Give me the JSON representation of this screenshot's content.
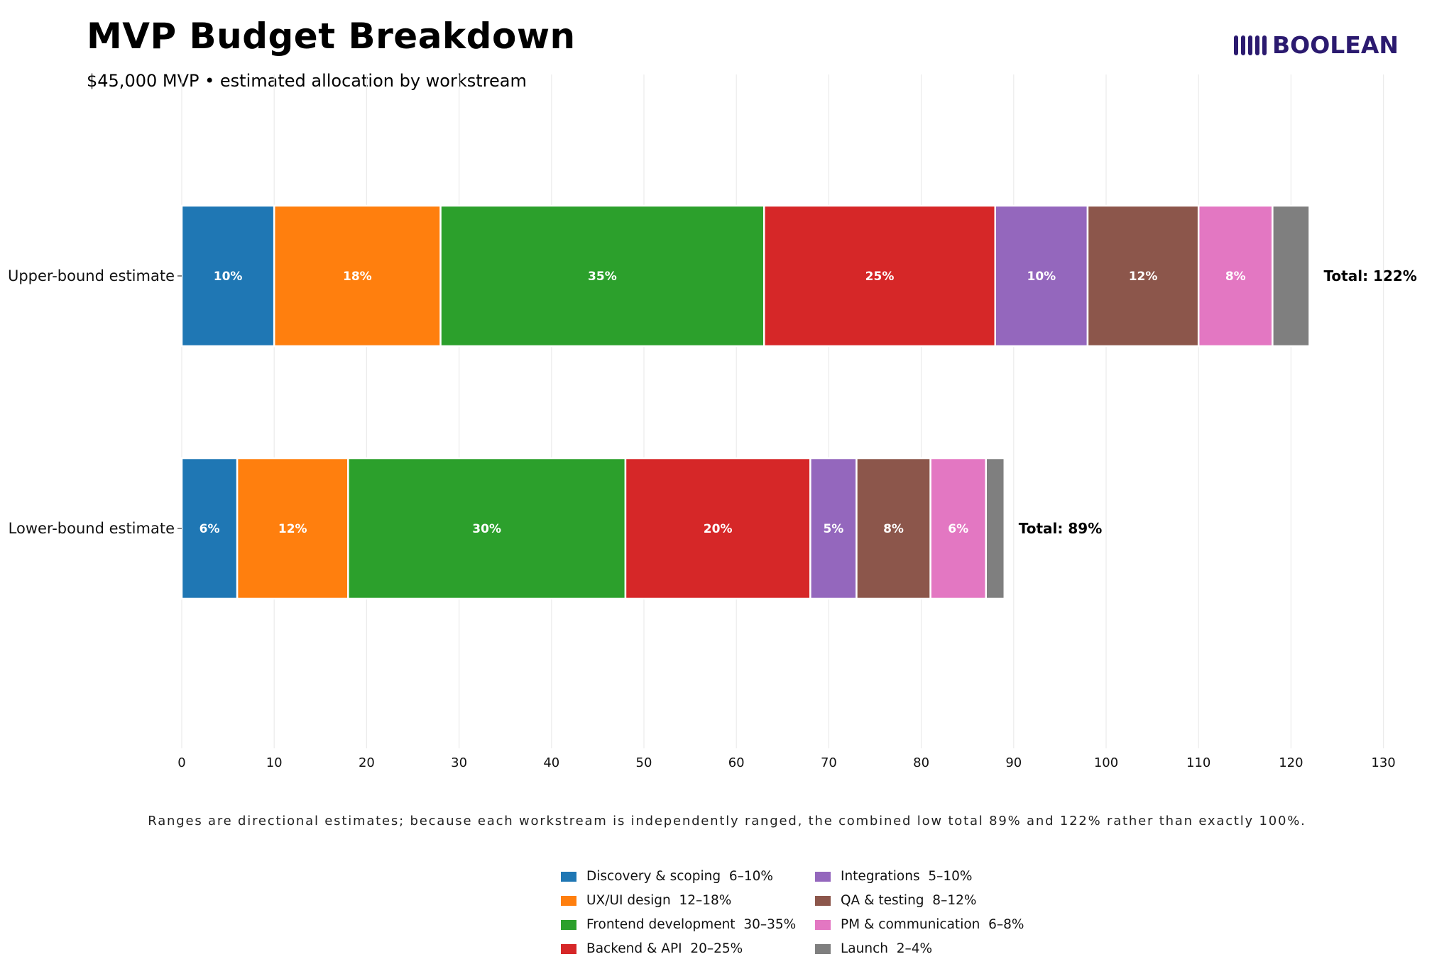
{
  "header": {
    "title": "MVP Budget Breakdown",
    "subtitle": "$45,000 MVP • estimated allocation by workstream"
  },
  "logo": {
    "text": "BOOLEAN",
    "icon": "vertical-bars-logo-icon",
    "color": "#2b1a6f"
  },
  "footnote": "Ranges are directional estimates; because each workstream is independently ranged, the combined low total 89% and 122% rather than exactly 100%.",
  "chart_data": {
    "type": "bar",
    "orientation": "horizontal",
    "stacked": true,
    "categories": [
      "Upper-bound estimate",
      "Lower-bound estimate"
    ],
    "series": [
      {
        "name": "Discovery & scoping",
        "range": "6–10%",
        "color": "#1f77b4",
        "values": [
          10,
          6
        ],
        "labels": [
          "10%",
          "6%"
        ]
      },
      {
        "name": "UX/UI design",
        "range": "12–18%",
        "color": "#ff7f0e",
        "values": [
          18,
          12
        ],
        "labels": [
          "18%",
          "12%"
        ]
      },
      {
        "name": "Frontend development",
        "range": "30–35%",
        "color": "#2ca02c",
        "values": [
          35,
          30
        ],
        "labels": [
          "35%",
          "30%"
        ]
      },
      {
        "name": "Backend & API",
        "range": "20–25%",
        "color": "#d62728",
        "values": [
          25,
          20
        ],
        "labels": [
          "25%",
          "20%"
        ]
      },
      {
        "name": "Integrations",
        "range": "5–10%",
        "color": "#9467bd",
        "values": [
          10,
          5
        ],
        "labels": [
          "10%",
          "5%"
        ]
      },
      {
        "name": "QA & testing",
        "range": "8–12%",
        "color": "#8c564b",
        "values": [
          12,
          8
        ],
        "labels": [
          "12%",
          "8%"
        ]
      },
      {
        "name": "PM & communication",
        "range": "6–8%",
        "color": "#e377c2",
        "values": [
          8,
          6
        ],
        "labels": [
          "8%",
          "6%"
        ]
      },
      {
        "name": "Launch",
        "range": "2–4%",
        "color": "#7f7f7f",
        "values": [
          4,
          2
        ],
        "labels": [
          "",
          ""
        ]
      }
    ],
    "totals": [
      "Total: 122%",
      "Total: 89%"
    ],
    "xlim": [
      0,
      130
    ],
    "xticks": [
      0,
      10,
      20,
      30,
      40,
      50,
      60,
      70,
      80,
      90,
      100,
      110,
      120,
      130
    ],
    "grid": "vertical",
    "legend_position": "bottom-center"
  }
}
